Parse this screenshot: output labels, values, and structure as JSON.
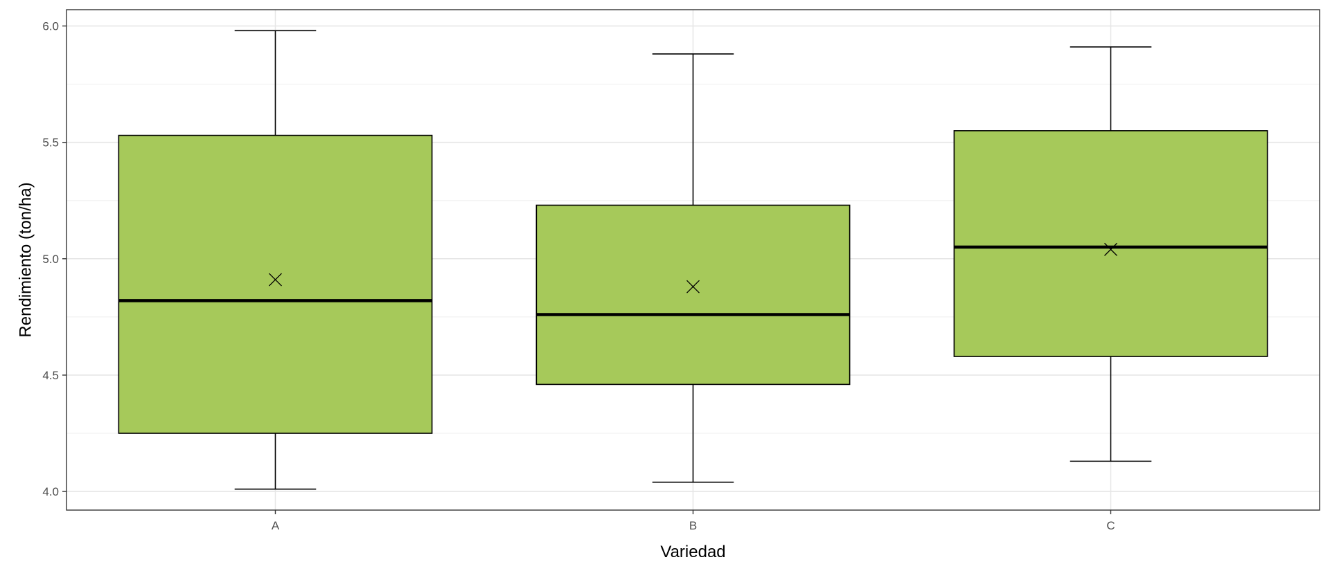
{
  "chart_data": {
    "type": "boxplot",
    "xlabel": "Variedad",
    "ylabel": "Rendimiento (ton/ha)",
    "categories": [
      "A",
      "B",
      "C"
    ],
    "boxes": [
      {
        "category": "A",
        "min": 4.01,
        "q1": 4.25,
        "median": 4.82,
        "q3": 5.53,
        "max": 5.98,
        "mean": 4.91
      },
      {
        "category": "B",
        "min": 4.04,
        "q1": 4.46,
        "median": 4.76,
        "q3": 5.23,
        "max": 5.88,
        "mean": 4.88
      },
      {
        "category": "C",
        "min": 4.13,
        "q1": 4.58,
        "median": 5.05,
        "q3": 5.55,
        "max": 5.91,
        "mean": 5.04
      }
    ],
    "ylim": [
      3.92,
      6.07
    ],
    "yticks": [
      4.0,
      4.5,
      5.0,
      5.5,
      6.0
    ],
    "ytick_labels": [
      "4.0",
      "4.5",
      "5.0",
      "5.5",
      "6.0"
    ],
    "grid": true,
    "legend": "none",
    "colors": {
      "box_fill": "#a6c95a",
      "outline": "#000000",
      "grid_major": "#e6e6e6",
      "grid_minor": "#f2f2f2",
      "panel_border": "#333333",
      "tick_text": "#4d4d4d"
    },
    "mean_marker": "x-icon"
  }
}
